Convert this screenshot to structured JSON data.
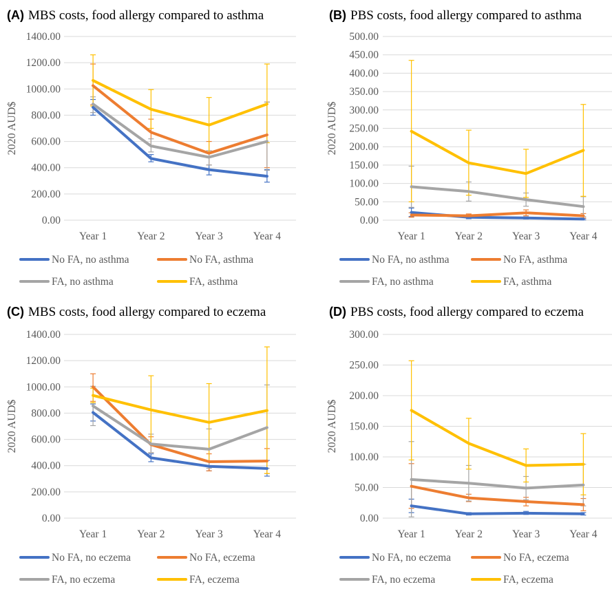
{
  "chart_data": [
    {
      "type": "line",
      "panel": "(A)",
      "title": "MBS costs, food allergy compared to asthma",
      "ylabel": "2020 AUD$",
      "ylim": [
        0,
        1400
      ],
      "yticks": [
        "0.00",
        "200.00",
        "400.00",
        "600.00",
        "800.00",
        "1000.00",
        "1200.00",
        "1400.00"
      ],
      "categories": [
        "Year 1",
        "Year 2",
        "Year 3",
        "Year 4"
      ],
      "series": [
        {
          "name": "No FA, no asthma",
          "color": "#4472C4",
          "values": [
            860,
            470,
            385,
            335
          ],
          "err_low": [
            800,
            445,
            345,
            290
          ],
          "err_high": [
            920,
            500,
            420,
            385
          ]
        },
        {
          "name": "No FA, asthma",
          "color": "#ED7D31",
          "values": [
            1025,
            670,
            510,
            650
          ],
          "err_low": [
            880,
            570,
            420,
            400
          ],
          "err_high": [
            1190,
            770,
            600,
            900
          ]
        },
        {
          "name": "FA, no asthma",
          "color": "#A5A5A5",
          "values": [
            885,
            565,
            480,
            600
          ],
          "err_low": [
            820,
            520,
            420,
            380
          ],
          "err_high": [
            940,
            620,
            530,
            900
          ]
        },
        {
          "name": "FA, asthma",
          "color": "#FFC000",
          "values": [
            1065,
            845,
            725,
            885
          ],
          "err_low": [
            870,
            700,
            520,
            590
          ],
          "err_high": [
            1260,
            995,
            935,
            1190
          ]
        }
      ],
      "legend_placement": "bottom"
    },
    {
      "type": "line",
      "panel": "(B)",
      "title": "PBS costs, food allergy compared to asthma",
      "ylabel": "2020 AUD$",
      "ylim": [
        0,
        500
      ],
      "yticks": [
        "0.00",
        "50.00",
        "100.00",
        "150.00",
        "200.00",
        "250.00",
        "300.00",
        "350.00",
        "400.00",
        "450.00",
        "500.00"
      ],
      "categories": [
        "Year 1",
        "Year 2",
        "Year 3",
        "Year 4"
      ],
      "series": [
        {
          "name": "No FA, no asthma",
          "color": "#4472C4",
          "values": [
            21,
            8,
            6,
            3
          ],
          "err_low": [
            10,
            4,
            3,
            1
          ],
          "err_high": [
            33,
            12,
            9,
            5
          ]
        },
        {
          "name": "No FA, asthma",
          "color": "#ED7D31",
          "values": [
            14,
            12,
            20,
            12
          ],
          "err_low": [
            8,
            7,
            12,
            6
          ],
          "err_high": [
            20,
            17,
            28,
            18
          ]
        },
        {
          "name": "FA, no asthma",
          "color": "#A5A5A5",
          "values": [
            91,
            78,
            56,
            37
          ],
          "err_low": [
            35,
            52,
            38,
            10
          ],
          "err_high": [
            147,
            104,
            74,
            64
          ]
        },
        {
          "name": "FA, asthma",
          "color": "#FFC000",
          "values": [
            242,
            156,
            127,
            190
          ],
          "err_low": [
            50,
            68,
            62,
            65
          ],
          "err_high": [
            435,
            245,
            193,
            315
          ]
        }
      ],
      "legend_placement": "bottom"
    },
    {
      "type": "line",
      "panel": "(C)",
      "title": "MBS costs, food allergy compared to eczema",
      "ylabel": "2020 AUD$",
      "ylim": [
        0,
        1400
      ],
      "yticks": [
        "0.00",
        "200.00",
        "400.00",
        "600.00",
        "800.00",
        "1000.00",
        "1200.00",
        "1400.00"
      ],
      "categories": [
        "Year 1",
        "Year 2",
        "Year 3",
        "Year 4"
      ],
      "series": [
        {
          "name": "No FA, no eczema",
          "color": "#4472C4",
          "values": [
            805,
            460,
            395,
            378
          ],
          "err_low": [
            740,
            430,
            360,
            320
          ],
          "err_high": [
            870,
            490,
            430,
            440
          ]
        },
        {
          "name": "No FA, eczema",
          "color": "#ED7D31",
          "values": [
            1000,
            560,
            430,
            435
          ],
          "err_low": [
            890,
            500,
            360,
            340
          ],
          "err_high": [
            1100,
            620,
            490,
            530
          ]
        },
        {
          "name": "FA, no eczema",
          "color": "#A5A5A5",
          "values": [
            855,
            565,
            525,
            690
          ],
          "err_low": [
            705,
            500,
            380,
            380
          ],
          "err_high": [
            1005,
            640,
            680,
            1015
          ]
        },
        {
          "name": "FA, eczema",
          "color": "#FFC000",
          "values": [
            935,
            825,
            730,
            820
          ],
          "err_low": [
            880,
            570,
            430,
            340
          ],
          "err_high": [
            990,
            1085,
            1025,
            1305
          ]
        }
      ],
      "legend_placement": "bottom"
    },
    {
      "type": "line",
      "panel": "(D)",
      "title": "PBS costs, food allergy compared to eczema",
      "ylabel": "2020 AUD$",
      "ylim": [
        0,
        300
      ],
      "yticks": [
        "0.00",
        "50.00",
        "100.00",
        "150.00",
        "200.00",
        "250.00",
        "300.00"
      ],
      "categories": [
        "Year 1",
        "Year 2",
        "Year 3",
        "Year 4"
      ],
      "series": [
        {
          "name": "No FA, no eczema",
          "color": "#4472C4",
          "values": [
            20,
            7,
            8,
            7
          ],
          "err_low": [
            9,
            5,
            6,
            5
          ],
          "err_high": [
            31,
            9,
            11,
            9
          ]
        },
        {
          "name": "No FA, eczema",
          "color": "#ED7D31",
          "values": [
            52,
            33,
            27,
            22
          ],
          "err_low": [
            16,
            27,
            20,
            12
          ],
          "err_high": [
            89,
            39,
            34,
            32
          ]
        },
        {
          "name": "FA, no eczema",
          "color": "#A5A5A5",
          "values": [
            63,
            57,
            49,
            54
          ],
          "err_low": [
            2,
            28,
            30,
            20
          ],
          "err_high": [
            125,
            86,
            68,
            88
          ]
        },
        {
          "name": "FA, eczema",
          "color": "#FFC000",
          "values": [
            176,
            122,
            86,
            88
          ],
          "err_low": [
            95,
            80,
            59,
            38
          ],
          "err_high": [
            257,
            163,
            113,
            138
          ]
        }
      ],
      "legend_placement": "bottom"
    }
  ]
}
